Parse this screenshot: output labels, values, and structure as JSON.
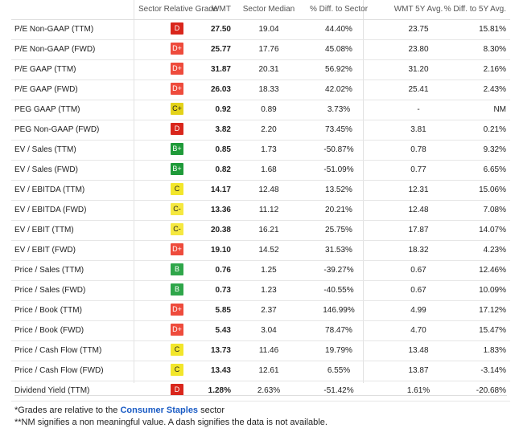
{
  "headers": {
    "metric": "",
    "grade": "Sector Relative Grade",
    "wmt": "WMT",
    "median": "Sector Median",
    "diff": "% Diff. to Sector",
    "avg5y": "WMT 5Y Avg.",
    "diff5y": "% Diff. to 5Y Avg."
  },
  "grade_colors": {
    "D": {
      "bg": "#d9261c",
      "fg": "#ffffff"
    },
    "D+": {
      "bg": "#ee4b3c",
      "fg": "#ffffff"
    },
    "C+": {
      "bg": "#e3d21a",
      "fg": "#222222"
    },
    "C": {
      "bg": "#f2e62b",
      "fg": "#222222"
    },
    "C-": {
      "bg": "#f5e840",
      "fg": "#222222"
    },
    "B+": {
      "bg": "#1f9a39",
      "fg": "#ffffff"
    },
    "B": {
      "bg": "#2fa64a",
      "fg": "#ffffff"
    }
  },
  "rows": [
    {
      "metric": "P/E Non-GAAP (TTM)",
      "grade": "D",
      "wmt": "27.50",
      "median": "19.04",
      "diff": "44.40%",
      "avg5y": "23.75",
      "diff5y": "15.81%"
    },
    {
      "metric": "P/E Non-GAAP (FWD)",
      "grade": "D+",
      "wmt": "25.77",
      "median": "17.76",
      "diff": "45.08%",
      "avg5y": "23.80",
      "diff5y": "8.30%"
    },
    {
      "metric": "P/E GAAP (TTM)",
      "grade": "D+",
      "wmt": "31.87",
      "median": "20.31",
      "diff": "56.92%",
      "avg5y": "31.20",
      "diff5y": "2.16%"
    },
    {
      "metric": "P/E GAAP (FWD)",
      "grade": "D+",
      "wmt": "26.03",
      "median": "18.33",
      "diff": "42.02%",
      "avg5y": "25.41",
      "diff5y": "2.43%"
    },
    {
      "metric": "PEG GAAP (TTM)",
      "grade": "C+",
      "wmt": "0.92",
      "median": "0.89",
      "diff": "3.73%",
      "avg5y": "-",
      "diff5y": "NM"
    },
    {
      "metric": "PEG Non-GAAP (FWD)",
      "grade": "D",
      "wmt": "3.82",
      "median": "2.20",
      "diff": "73.45%",
      "avg5y": "3.81",
      "diff5y": "0.21%"
    },
    {
      "metric": "EV / Sales (TTM)",
      "grade": "B+",
      "wmt": "0.85",
      "median": "1.73",
      "diff": "-50.87%",
      "avg5y": "0.78",
      "diff5y": "9.32%"
    },
    {
      "metric": "EV / Sales (FWD)",
      "grade": "B+",
      "wmt": "0.82",
      "median": "1.68",
      "diff": "-51.09%",
      "avg5y": "0.77",
      "diff5y": "6.65%"
    },
    {
      "metric": "EV / EBITDA (TTM)",
      "grade": "C",
      "wmt": "14.17",
      "median": "12.48",
      "diff": "13.52%",
      "avg5y": "12.31",
      "diff5y": "15.06%"
    },
    {
      "metric": "EV / EBITDA (FWD)",
      "grade": "C-",
      "wmt": "13.36",
      "median": "11.12",
      "diff": "20.21%",
      "avg5y": "12.48",
      "diff5y": "7.08%"
    },
    {
      "metric": "EV / EBIT (TTM)",
      "grade": "C-",
      "wmt": "20.38",
      "median": "16.21",
      "diff": "25.75%",
      "avg5y": "17.87",
      "diff5y": "14.07%"
    },
    {
      "metric": "EV / EBIT (FWD)",
      "grade": "D+",
      "wmt": "19.10",
      "median": "14.52",
      "diff": "31.53%",
      "avg5y": "18.32",
      "diff5y": "4.23%"
    },
    {
      "metric": "Price / Sales (TTM)",
      "grade": "B",
      "wmt": "0.76",
      "median": "1.25",
      "diff": "-39.27%",
      "avg5y": "0.67",
      "diff5y": "12.46%"
    },
    {
      "metric": "Price / Sales (FWD)",
      "grade": "B",
      "wmt": "0.73",
      "median": "1.23",
      "diff": "-40.55%",
      "avg5y": "0.67",
      "diff5y": "10.09%"
    },
    {
      "metric": "Price / Book (TTM)",
      "grade": "D+",
      "wmt": "5.85",
      "median": "2.37",
      "diff": "146.99%",
      "avg5y": "4.99",
      "diff5y": "17.12%"
    },
    {
      "metric": "Price / Book (FWD)",
      "grade": "D+",
      "wmt": "5.43",
      "median": "3.04",
      "diff": "78.47%",
      "avg5y": "4.70",
      "diff5y": "15.47%"
    },
    {
      "metric": "Price / Cash Flow (TTM)",
      "grade": "C",
      "wmt": "13.73",
      "median": "11.46",
      "diff": "19.79%",
      "avg5y": "13.48",
      "diff5y": "1.83%"
    },
    {
      "metric": "Price / Cash Flow (FWD)",
      "grade": "C",
      "wmt": "13.43",
      "median": "12.61",
      "diff": "6.55%",
      "avg5y": "13.87",
      "diff5y": "-3.14%"
    },
    {
      "metric": "Dividend Yield (TTM)",
      "grade": "D",
      "wmt": "1.28%",
      "median": "2.63%",
      "diff": "-51.42%",
      "avg5y": "1.61%",
      "diff5y": "-20.68%"
    }
  ],
  "footer": {
    "note1_prefix": "*Grades are relative to the",
    "note1_link": "Consumer Staples",
    "note1_suffix": "sector",
    "note2": "**NM signifies a non meaningful value. A dash signifies the data is not available."
  }
}
